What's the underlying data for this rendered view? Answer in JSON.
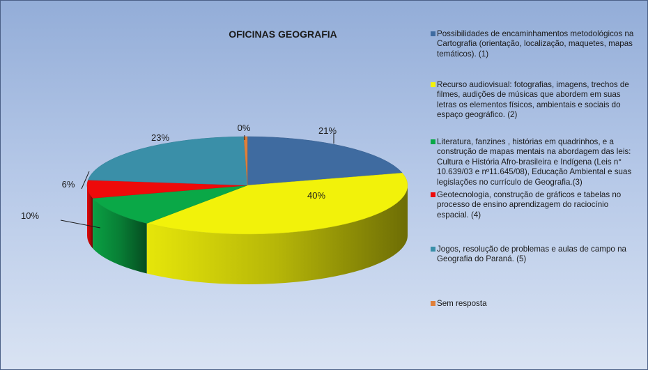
{
  "chart_data": {
    "type": "pie",
    "title": "OFICINAS GEOGRAFIA",
    "values": [
      21,
      40,
      10,
      6,
      23,
      0
    ],
    "labels": [
      "21%",
      "40%",
      "10%",
      "6%",
      "23%",
      "0%"
    ],
    "legend_position": "right",
    "series": [
      {
        "name": "Possibilidades de encaminhamentos metodológicos na Cartografia (orientação, localização, maquetes, mapas temáticos). (1)",
        "value": 21,
        "color": "#3f6ba0"
      },
      {
        "name": "Recurso audiovisual: fotografias, imagens, trechos de filmes, audições de músicas que abordem em suas letras os elementos físicos, ambientais e sociais do espaço geográfico. (2)",
        "value": 40,
        "color": "#f2f20a"
      },
      {
        "name": "Literatura, fanzines , histórias em quadrinhos, e a construção de mapas mentais na abordagem das leis: Cultura e História Afro-brasileira e Indígena (Leis n° 10.639/03 e nº11.645/08), Educação Ambiental e suas legislações no currículo de Geografia.(3)",
        "value": 10,
        "color": "#0aa847"
      },
      {
        "name": "Geotecnologia, construção de gráficos e tabelas no processo de ensino aprendizagem do raciocínio espacial. (4)",
        "value": 6,
        "color": "#ee0a0a"
      },
      {
        "name": "Jogos, resolução de problemas e aulas de campo na Geografia do Paraná. (5)",
        "value": 23,
        "color": "#3a8fa8"
      },
      {
        "name": "Sem resposta",
        "value": 0,
        "color": "#e0803a"
      }
    ]
  }
}
